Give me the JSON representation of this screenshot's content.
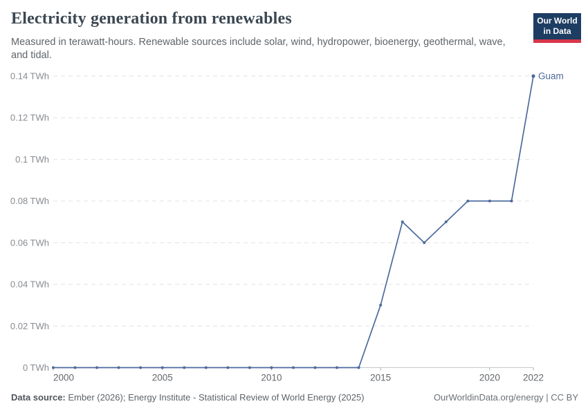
{
  "header": {
    "title": "Electricity generation from renewables",
    "subtitle": "Measured in terawatt-hours. Renewable sources include solar, wind, hydropower, bioenergy, geothermal, wave, and tidal.",
    "logo": {
      "line1": "Our World",
      "line2": "in Data",
      "bg_color": "#1d3d63",
      "stripe_color": "#d8354a"
    }
  },
  "chart_data": {
    "type": "line",
    "title": "Electricity generation from renewables",
    "unit": "TWh",
    "entity_label": "Guam",
    "line_color": "#4c6a9c",
    "grid": "horizontal-dashed",
    "legend_position": "end-of-line-label",
    "x": [
      2000,
      2001,
      2002,
      2003,
      2004,
      2005,
      2006,
      2007,
      2008,
      2009,
      2010,
      2011,
      2012,
      2013,
      2014,
      2015,
      2016,
      2017,
      2018,
      2019,
      2020,
      2021,
      2022
    ],
    "series": [
      {
        "name": "Guam",
        "values": [
          0,
          0,
          0,
          0,
          0,
          0,
          0,
          0,
          0,
          0,
          0,
          0,
          0,
          0,
          0,
          0.03,
          0.07,
          0.06,
          0.07,
          0.08,
          0.08,
          0.08,
          0.14
        ]
      }
    ],
    "xlabel": "",
    "ylabel": "",
    "ylim": [
      0,
      0.14
    ],
    "xlim": [
      2000,
      2022
    ],
    "y_ticks": [
      0,
      0.02,
      0.04,
      0.06,
      0.08,
      0.1,
      0.12,
      0.14
    ],
    "y_tick_labels": [
      "0 TWh",
      "0.02 TWh",
      "0.04 TWh",
      "0.06 TWh",
      "0.08 TWh",
      "0.1 TWh",
      "0.12 TWh",
      "0.14 TWh"
    ],
    "x_ticks": [
      2000,
      2005,
      2010,
      2015,
      2020,
      2022
    ]
  },
  "footer": {
    "source_label": "Data source:",
    "source_text": " Ember (2026); Energy Institute - Statistical Review of World Energy (2025)",
    "rights": "OurWorldinData.org/energy | CC BY"
  }
}
